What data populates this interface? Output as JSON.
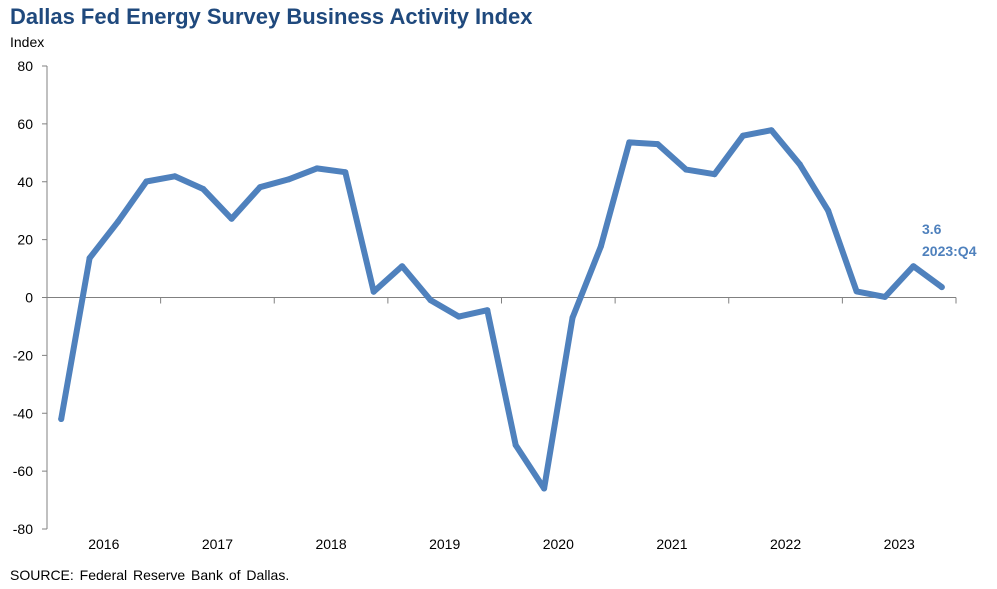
{
  "chart_data": {
    "type": "line",
    "title": "Dallas Fed Energy Survey Business Activity Index",
    "xlabel": "",
    "ylabel": "Index",
    "ylim": [
      -80,
      80
    ],
    "yticks": [
      "80",
      "60",
      "40",
      "20",
      "0",
      "-20",
      "-40",
      "-60",
      "-80"
    ],
    "year_labels": [
      "2016",
      "2017",
      "2018",
      "2019",
      "2020",
      "2021",
      "2022",
      "2023"
    ],
    "grid": false,
    "legend": "none",
    "x": [
      "2016:Q1",
      "2016:Q2",
      "2016:Q3",
      "2016:Q4",
      "2017:Q1",
      "2017:Q2",
      "2017:Q3",
      "2017:Q4",
      "2018:Q1",
      "2018:Q2",
      "2018:Q3",
      "2018:Q4",
      "2019:Q1",
      "2019:Q2",
      "2019:Q3",
      "2019:Q4",
      "2020:Q1",
      "2020:Q2",
      "2020:Q3",
      "2020:Q4",
      "2021:Q1",
      "2021:Q2",
      "2021:Q3",
      "2021:Q4",
      "2022:Q1",
      "2022:Q2",
      "2022:Q3",
      "2022:Q4",
      "2023:Q1",
      "2023:Q2",
      "2023:Q3",
      "2023:Q4"
    ],
    "series": [
      {
        "values": [
          -42,
          13.6,
          26.2,
          40.1,
          41.9,
          37.5,
          27.2,
          38.1,
          40.8,
          44.6,
          43.3,
          2.0,
          10.8,
          -0.9,
          -6.6,
          -4.4,
          -51.0,
          -66.0,
          -7.0,
          17.7,
          53.6,
          53.0,
          44.2,
          42.6,
          55.9,
          57.8,
          46.0,
          30.0,
          2.1,
          0.2,
          10.8,
          3.6
        ],
        "color": "#4f81bd"
      }
    ],
    "annotation": {
      "value": "3.6",
      "period": "2023:Q4",
      "color": "#4f81bd"
    }
  },
  "footer": {
    "source": "SOURCE: Federal Reserve Bank of Dallas."
  }
}
